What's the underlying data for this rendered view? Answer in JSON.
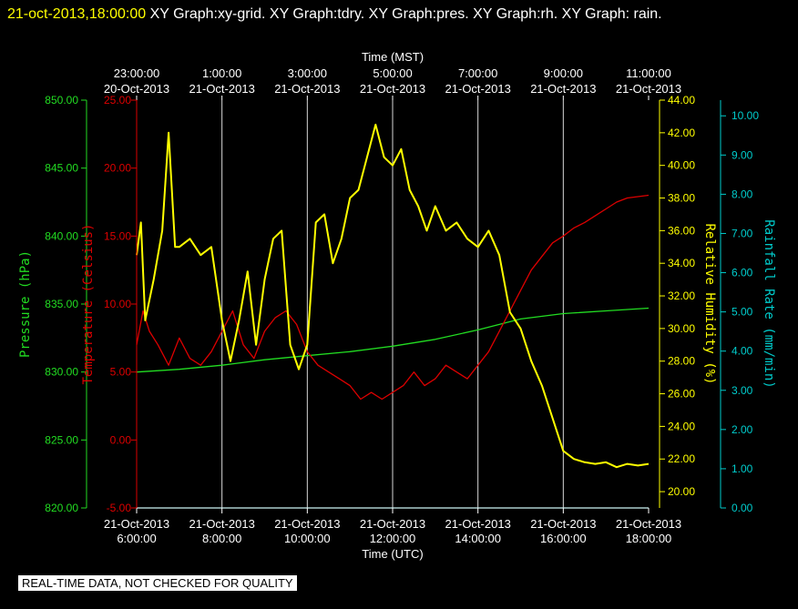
{
  "header": {
    "stamp": "21-oct-2013,18:00:00",
    "title": "XY Graph:xy-grid.  XY Graph:tdry.  XY Graph:pres.  XY Graph:rh.  XY Graph: rain."
  },
  "disclaimer": "REAL-TIME DATA, NOT CHECKED FOR QUALITY",
  "colors": {
    "pressure": "#22dd22",
    "temperature": "#dd0000",
    "humidity": "#ffff00",
    "rain": "#00cccc",
    "grid": "#ffffff"
  },
  "chart_data": {
    "type": "line",
    "x_range_utc": [
      "2013-10-21 06:00",
      "2013-10-21 18:00"
    ],
    "top_axis": {
      "label": "Time (MST)",
      "ticks": [
        {
          "time": "23:00:00",
          "date": "20-Oct-2013"
        },
        {
          "time": "1:00:00",
          "date": "21-Oct-2013"
        },
        {
          "time": "3:00:00",
          "date": "21-Oct-2013"
        },
        {
          "time": "5:00:00",
          "date": "21-Oct-2013"
        },
        {
          "time": "7:00:00",
          "date": "21-Oct-2013"
        },
        {
          "time": "9:00:00",
          "date": "21-Oct-2013"
        },
        {
          "time": "11:00:00",
          "date": "21-Oct-2013"
        }
      ]
    },
    "bottom_axis": {
      "label": "Time (UTC)",
      "ticks": [
        {
          "time": "6:00:00",
          "date": "21-Oct-2013"
        },
        {
          "time": "8:00:00",
          "date": "21-Oct-2013"
        },
        {
          "time": "10:00:00",
          "date": "21-Oct-2013"
        },
        {
          "time": "12:00:00",
          "date": "21-Oct-2013"
        },
        {
          "time": "14:00:00",
          "date": "21-Oct-2013"
        },
        {
          "time": "16:00:00",
          "date": "21-Oct-2013"
        },
        {
          "time": "18:00:00",
          "date": "21-Oct-2013"
        }
      ]
    },
    "axes": {
      "pressure": {
        "label": "Pressure (hPa)",
        "ylim": [
          820,
          850
        ],
        "ticks": [
          "820.00",
          "825.00",
          "830.00",
          "835.00",
          "840.00",
          "845.00",
          "850.00"
        ]
      },
      "temperature": {
        "label": "Temperature (Celsius)",
        "ylim": [
          -5,
          25
        ],
        "ticks": [
          "-5.00",
          "0.00",
          "5.00",
          "10.00",
          "15.00",
          "20.00",
          "25.00"
        ]
      },
      "humidity": {
        "label": "Relative Humidity (%)",
        "ylim": [
          19,
          44
        ],
        "ticks": [
          "20.00",
          "22.00",
          "24.00",
          "26.00",
          "28.00",
          "30.00",
          "32.00",
          "34.00",
          "36.00",
          "38.00",
          "40.00",
          "42.00",
          "44.00"
        ]
      },
      "rain": {
        "label": "Rainfall Rate (mm/min)",
        "ylim": [
          0,
          10.4
        ],
        "ticks": [
          "0.00",
          "1.00",
          "2.00",
          "3.00",
          "4.00",
          "5.00",
          "6.00",
          "7.00",
          "8.00",
          "9.00",
          "10.00"
        ]
      }
    },
    "series": [
      {
        "name": "pres",
        "axis": "pressure",
        "x_hours_utc": [
          6,
          7,
          8,
          9,
          10,
          11,
          12,
          13,
          14,
          15,
          16,
          17,
          18
        ],
        "y": [
          830.0,
          830.2,
          830.5,
          830.9,
          831.2,
          831.5,
          831.9,
          832.4,
          833.1,
          833.9,
          834.3,
          834.5,
          834.7
        ]
      },
      {
        "name": "tdry",
        "axis": "temperature",
        "x_hours_utc": [
          6,
          6.15,
          6.3,
          6.5,
          6.75,
          7,
          7.25,
          7.5,
          7.75,
          8,
          8.25,
          8.5,
          8.75,
          9,
          9.25,
          9.5,
          9.75,
          10,
          10.25,
          10.5,
          10.75,
          11,
          11.25,
          11.5,
          11.75,
          12,
          12.25,
          12.5,
          12.75,
          13,
          13.25,
          13.5,
          13.75,
          14,
          14.25,
          14.5,
          14.75,
          15,
          15.25,
          15.5,
          15.75,
          16,
          16.25,
          16.5,
          16.75,
          17,
          17.25,
          17.5,
          17.75,
          18
        ],
        "y": [
          7.0,
          9.5,
          8.0,
          7.0,
          5.5,
          7.5,
          6.0,
          5.5,
          6.5,
          8.0,
          9.5,
          7.0,
          6.0,
          8.0,
          9.0,
          9.5,
          8.5,
          6.5,
          5.5,
          5.0,
          4.5,
          4.0,
          3.0,
          3.5,
          3.0,
          3.5,
          4.0,
          5.0,
          4.0,
          4.5,
          5.5,
          5.0,
          4.5,
          5.5,
          6.5,
          8.0,
          9.5,
          11.0,
          12.5,
          13.5,
          14.5,
          15.0,
          15.6,
          16.0,
          16.5,
          17.0,
          17.5,
          17.8,
          17.9,
          18.0
        ]
      },
      {
        "name": "rh",
        "axis": "humidity",
        "x_hours_utc": [
          6,
          6.1,
          6.2,
          6.4,
          6.6,
          6.75,
          6.9,
          7.0,
          7.25,
          7.5,
          7.75,
          8.0,
          8.2,
          8.4,
          8.6,
          8.8,
          9.0,
          9.2,
          9.4,
          9.6,
          9.8,
          10.0,
          10.2,
          10.4,
          10.6,
          10.8,
          11.0,
          11.2,
          11.4,
          11.6,
          11.8,
          12.0,
          12.2,
          12.4,
          12.6,
          12.8,
          13.0,
          13.25,
          13.5,
          13.75,
          14.0,
          14.25,
          14.5,
          14.75,
          15.0,
          15.25,
          15.5,
          15.75,
          16.0,
          16.25,
          16.5,
          16.75,
          17.0,
          17.25,
          17.5,
          17.75,
          18.0
        ],
        "y": [
          34.5,
          36.5,
          30.5,
          33.0,
          36.0,
          42.0,
          35.0,
          35.0,
          35.5,
          34.5,
          35.0,
          30.5,
          28.0,
          30.5,
          33.5,
          29.0,
          33.0,
          35.5,
          36.0,
          29.0,
          27.5,
          29.0,
          36.5,
          37.0,
          34.0,
          35.5,
          38.0,
          38.5,
          40.5,
          42.5,
          40.5,
          40.0,
          41.0,
          38.5,
          37.5,
          36.0,
          37.5,
          36.0,
          36.5,
          35.5,
          35.0,
          36.0,
          34.5,
          31.0,
          30.0,
          28.0,
          26.5,
          24.5,
          22.5,
          22.0,
          21.8,
          21.7,
          21.8,
          21.5,
          21.7,
          21.6,
          21.7
        ]
      },
      {
        "name": "rain",
        "axis": "rain",
        "x_hours_utc": [
          6,
          18
        ],
        "y": [
          0,
          0
        ]
      }
    ]
  }
}
